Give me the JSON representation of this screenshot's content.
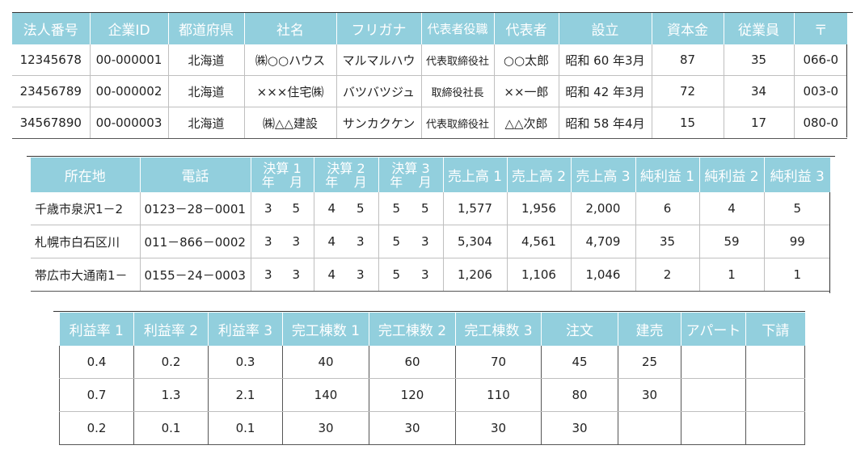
{
  "table1": {
    "headers": [
      "法人番号",
      "企業ID",
      "都道府県",
      "社名",
      "フリガナ",
      "代表者役職",
      "代表者",
      "設立",
      "資本金",
      "従業員",
      "〒"
    ],
    "rows": [
      [
        "12345678",
        "00-000001",
        "北海道",
        "㈱○○ハウス",
        "マルマルハウ",
        "代表取締役社",
        "○○太郎",
        "昭和 60 年3月",
        "87",
        "35",
        "066-0"
      ],
      [
        "23456789",
        "00-000002",
        "北海道",
        "×××住宅㈱",
        "バツバツジュ",
        "取締役社長",
        "××一郎",
        "昭和 42 年3月",
        "72",
        "34",
        "003-0"
      ],
      [
        "34567890",
        "00-000003",
        "北海道",
        "㈱△△建設",
        "サンカクケン",
        "代表取締役社",
        "△△次郎",
        "昭和 58 年4月",
        "15",
        "17",
        "080-0"
      ]
    ]
  },
  "table2": {
    "headers": [
      "所在地",
      "電話",
      "決算 1",
      "決算 2",
      "決算 3",
      "売上高 1",
      "売上高 2",
      "売上高 3",
      "純利益 1",
      "純利益 2",
      "純利益 3"
    ],
    "sub_year": "年",
    "sub_month": "月",
    "rows": [
      [
        "千歳市泉沢1－2",
        "0123－28－0001",
        [
          "3",
          "5"
        ],
        [
          "4",
          "5"
        ],
        [
          "5",
          "5"
        ],
        "1,577",
        "1,956",
        "2,000",
        "6",
        "4",
        "5"
      ],
      [
        "札幌市白石区川",
        "011－866－0002",
        [
          "3",
          "3"
        ],
        [
          "4",
          "3"
        ],
        [
          "5",
          "3"
        ],
        "5,304",
        "4,561",
        "4,709",
        "35",
        "59",
        "99"
      ],
      [
        "帯広市大通南1－",
        "0155－24－0003",
        [
          "3",
          "3"
        ],
        [
          "4",
          "3"
        ],
        [
          "5",
          "3"
        ],
        "1,206",
        "1,106",
        "1,046",
        "2",
        "1",
        "1"
      ]
    ]
  },
  "table3": {
    "headers": [
      "利益率 1",
      "利益率 2",
      "利益率 3",
      "完工棟数 1",
      "完工棟数 2",
      "完工棟数 3",
      "注文",
      "建売",
      "アパート",
      "下請"
    ],
    "rows": [
      [
        "0.4",
        "0.2",
        "0.3",
        "40",
        "60",
        "70",
        "45",
        "25",
        "",
        ""
      ],
      [
        "0.7",
        "1.3",
        "2.1",
        "140",
        "120",
        "110",
        "80",
        "30",
        "",
        ""
      ],
      [
        "0.2",
        "0.1",
        "0.1",
        "30",
        "30",
        "30",
        "30",
        "",
        "",
        ""
      ]
    ]
  },
  "colors": {
    "header_bg": "#92cfdd",
    "header_text": "#ffffff"
  }
}
